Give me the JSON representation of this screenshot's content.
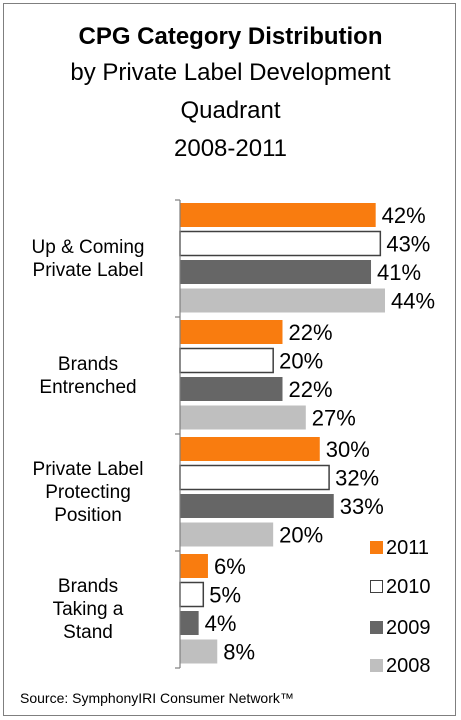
{
  "title": "CPG Category Distribution",
  "subtitle_lines": [
    "by Private Label Development",
    "Quadrant",
    "2008-2011"
  ],
  "source": "Source:  SymphonyIRI Consumer Network™",
  "chart_data": {
    "type": "bar",
    "orientation": "horizontal",
    "categories": [
      "Up & Coming Private Label",
      "Brands Entrenched",
      "Private Label Protecting Position",
      "Brands Taking a Stand"
    ],
    "category_label_lines": [
      [
        "Up & Coming",
        "Private Label"
      ],
      [
        "Brands",
        "Entrenched"
      ],
      [
        "Private Label",
        "Protecting",
        "Position"
      ],
      [
        "Brands",
        "Taking a",
        "Stand"
      ]
    ],
    "series": [
      {
        "name": "2011",
        "values": [
          42,
          22,
          30,
          6
        ],
        "color": "#f97c0f"
      },
      {
        "name": "2010",
        "values": [
          43,
          20,
          32,
          5
        ],
        "color": "#ffffff"
      },
      {
        "name": "2009",
        "values": [
          41,
          22,
          33,
          4
        ],
        "color": "#666666"
      },
      {
        "name": "2008",
        "values": [
          44,
          27,
          20,
          8
        ],
        "color": "#bfbfbf"
      }
    ],
    "value_suffix": "%",
    "xlim": [
      0,
      50
    ],
    "legend_position": "bottom-right",
    "grid": false
  }
}
